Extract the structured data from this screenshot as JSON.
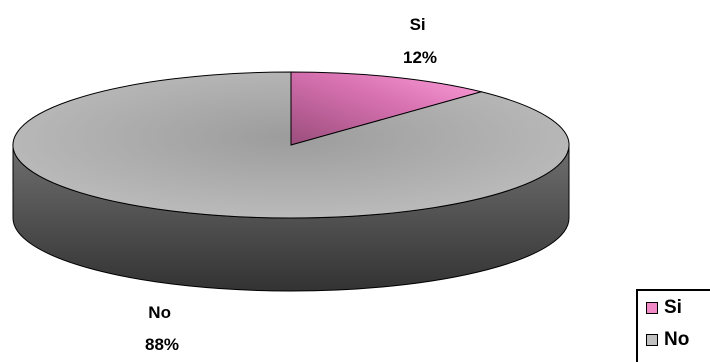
{
  "chart_data": {
    "type": "pie",
    "categories": [
      "Si",
      "No"
    ],
    "values": [
      12,
      88
    ],
    "labels": [
      "12%",
      "88%"
    ],
    "colors": [
      "#f28ac8",
      "#c0c0c0"
    ],
    "style": "3d",
    "legend_position": "bottom-right"
  }
}
